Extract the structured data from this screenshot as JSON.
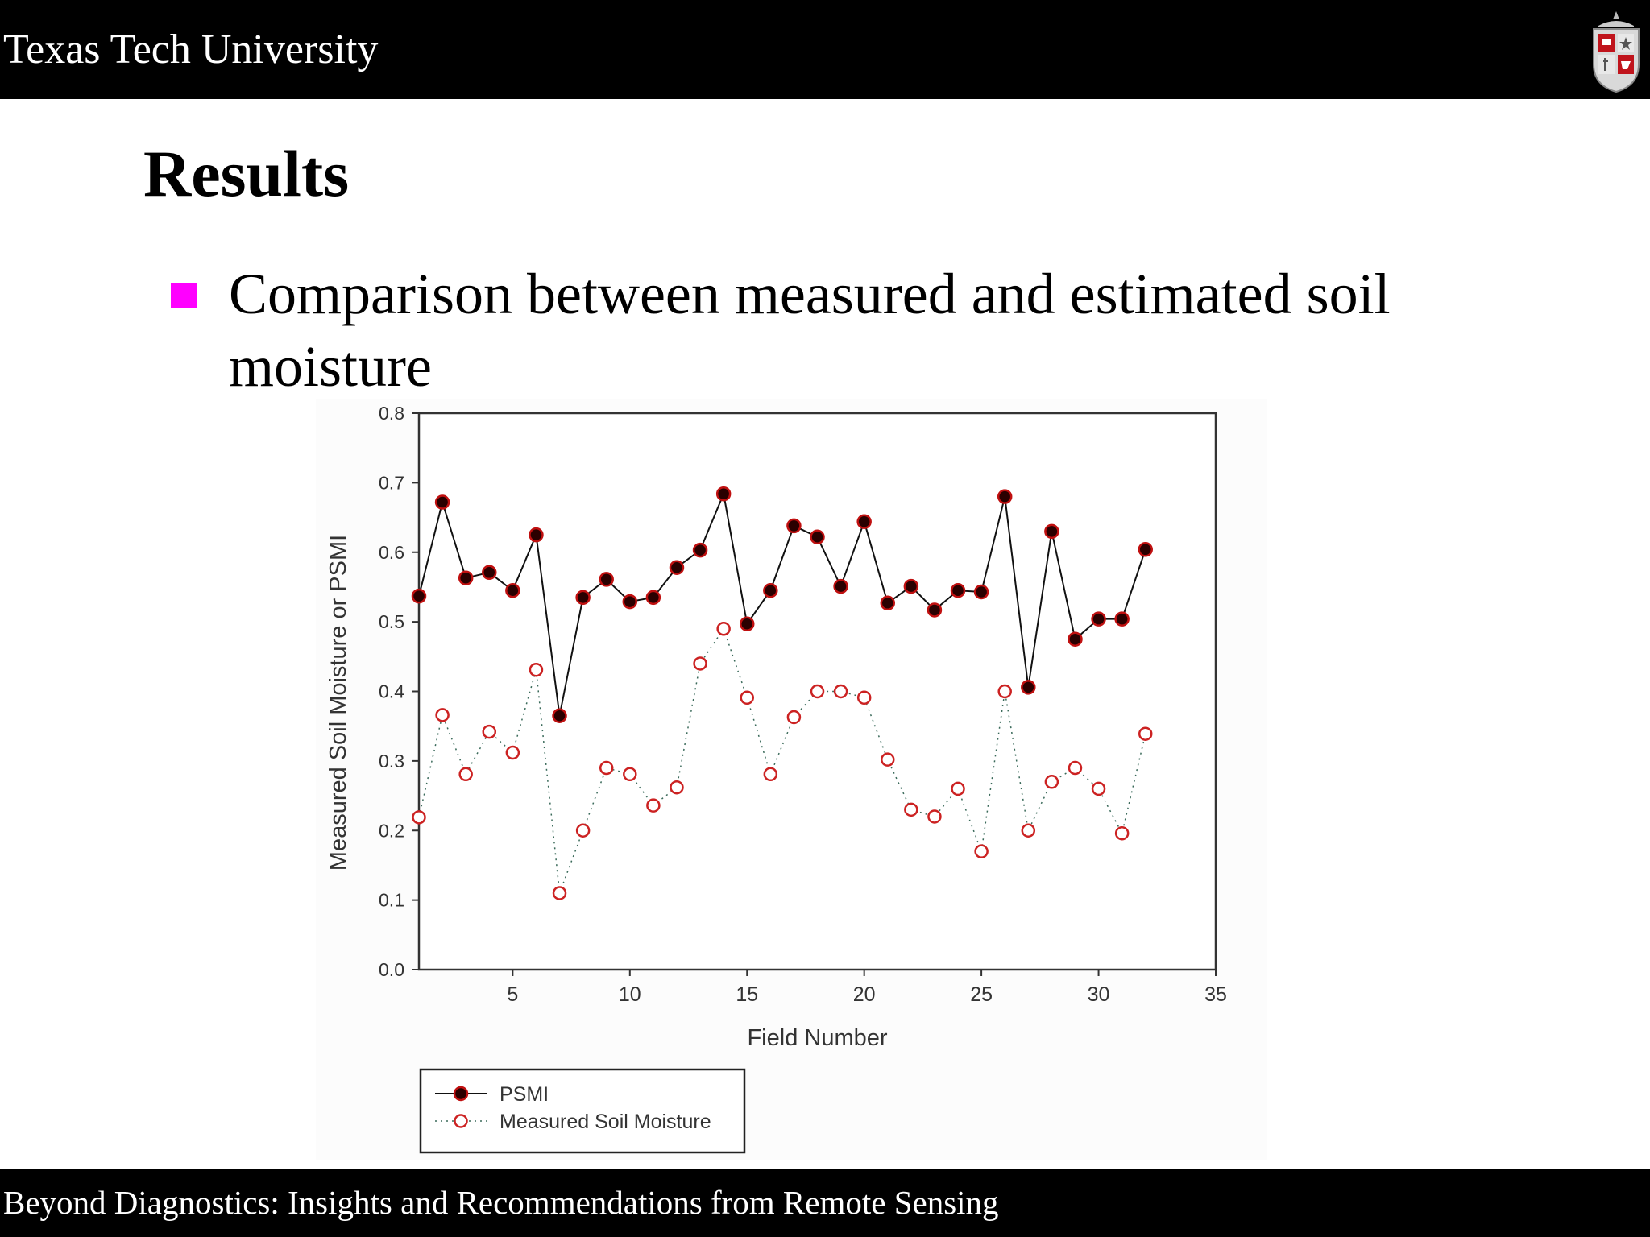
{
  "header": {
    "title": "Texas Tech University",
    "logo_icon": "ttu-crest-icon"
  },
  "slide": {
    "title": "Results",
    "bullet": "Comparison between measured and estimated soil moisture",
    "bullet_color": "#ff00ff"
  },
  "footer": {
    "text": "Beyond Diagnostics:  Insights and Recommendations from Remote Sensing"
  },
  "chart_data": {
    "type": "line",
    "title": "",
    "xlabel": "Field Number",
    "ylabel": "Measured Soil Moisture or PSMI",
    "xlim": [
      1,
      35
    ],
    "ylim": [
      0.0,
      0.8
    ],
    "xticks": [
      5,
      10,
      15,
      20,
      25,
      30,
      35
    ],
    "yticks": [
      0.0,
      0.1,
      0.2,
      0.3,
      0.4,
      0.5,
      0.6,
      0.7,
      0.8
    ],
    "ytick_labels": [
      "0.0",
      "0.1",
      "0.2",
      "0.3",
      "0.4",
      "0.5",
      "0.6",
      "0.7",
      "0.8"
    ],
    "grid": false,
    "legend_position": "bottom-left",
    "x": [
      1,
      2,
      3,
      4,
      5,
      6,
      7,
      8,
      9,
      10,
      11,
      12,
      13,
      14,
      15,
      16,
      17,
      18,
      19,
      20,
      21,
      22,
      23,
      24,
      25,
      26,
      27,
      28,
      29,
      30,
      31,
      32
    ],
    "series": [
      {
        "name": "PSMI",
        "color": "#8b0000",
        "line_style": "solid",
        "marker": "filled-circle",
        "values": [
          0.537,
          0.672,
          0.563,
          0.571,
          0.545,
          0.625,
          0.365,
          0.535,
          0.561,
          0.529,
          0.535,
          0.578,
          0.603,
          0.684,
          0.497,
          0.545,
          0.638,
          0.622,
          0.551,
          0.644,
          0.527,
          0.551,
          0.517,
          0.545,
          0.543,
          0.68,
          0.406,
          0.63,
          0.475,
          0.504,
          0.504,
          0.604
        ]
      },
      {
        "name": "Measured Soil Moisture",
        "color": "#cc2222",
        "line_style": "dotted",
        "marker": "open-circle",
        "values": [
          0.219,
          0.366,
          0.281,
          0.342,
          0.312,
          0.431,
          0.11,
          0.2,
          0.29,
          0.281,
          0.236,
          0.262,
          0.44,
          0.49,
          0.391,
          0.281,
          0.363,
          0.4,
          0.4,
          0.391,
          0.302,
          0.23,
          0.22,
          0.26,
          0.17,
          0.4,
          0.2,
          0.27,
          0.29,
          0.26,
          0.196,
          0.339
        ]
      }
    ]
  }
}
